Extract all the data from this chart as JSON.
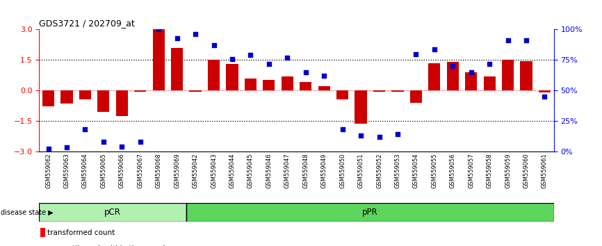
{
  "title": "GDS3721 / 202709_at",
  "samples": [
    "GSM559062",
    "GSM559063",
    "GSM559064",
    "GSM559065",
    "GSM559066",
    "GSM559067",
    "GSM559068",
    "GSM559069",
    "GSM559042",
    "GSM559043",
    "GSM559044",
    "GSM559045",
    "GSM559046",
    "GSM559047",
    "GSM559048",
    "GSM559049",
    "GSM559050",
    "GSM559051",
    "GSM559052",
    "GSM559053",
    "GSM559054",
    "GSM559055",
    "GSM559056",
    "GSM559057",
    "GSM559058",
    "GSM559059",
    "GSM559060",
    "GSM559061"
  ],
  "bar_values": [
    -0.8,
    -0.65,
    -0.45,
    -1.05,
    -1.25,
    -0.05,
    3.0,
    2.1,
    -0.05,
    1.5,
    1.3,
    0.6,
    0.5,
    0.7,
    0.4,
    0.2,
    -0.45,
    -1.65,
    -0.05,
    -0.05,
    -0.6,
    1.35,
    1.4,
    0.9,
    0.7,
    1.5,
    1.45,
    -0.1
  ],
  "percentile_values": [
    2,
    3,
    18,
    8,
    4,
    8,
    100,
    93,
    96,
    87,
    76,
    79,
    72,
    77,
    65,
    62,
    18,
    13,
    12,
    14,
    80,
    84,
    70,
    65,
    72,
    91,
    91,
    45
  ],
  "pcr_count": 8,
  "pcr_color_light": "#b2f0b2",
  "ppr_color": "#5cd65c",
  "bar_color": "#cc0000",
  "dot_color": "#0000cc",
  "ylim": [
    -3,
    3
  ],
  "yticks": [
    -3,
    -1.5,
    0,
    1.5,
    3
  ],
  "y2ticks": [
    0,
    25,
    50,
    75,
    100
  ],
  "y2ticklabels": [
    "0%",
    "25%",
    "50%",
    "75%",
    "100%"
  ],
  "xtick_bg_color": "#d0d0d0",
  "xtick_border_color": "#888888"
}
